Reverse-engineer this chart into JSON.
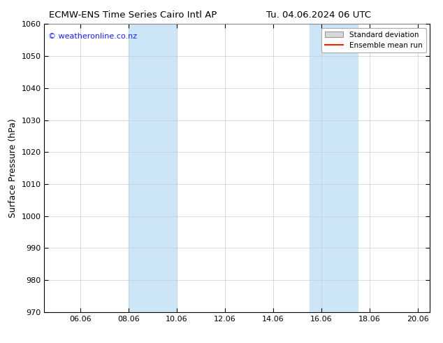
{
  "title_left": "ECMW-ENS Time Series Cairo Intl AP",
  "title_right": "Tu. 04.06.2024 06 UTC",
  "ylabel": "Surface Pressure (hPa)",
  "xlim": [
    4.5,
    20.5
  ],
  "ylim": [
    970,
    1060
  ],
  "yticks": [
    970,
    980,
    990,
    1000,
    1010,
    1020,
    1030,
    1040,
    1050,
    1060
  ],
  "xtick_labels": [
    "06.06",
    "08.06",
    "10.06",
    "12.06",
    "14.06",
    "16.06",
    "18.06",
    "20.06"
  ],
  "xtick_positions": [
    6,
    8,
    10,
    12,
    14,
    16,
    18,
    20
  ],
  "shaded_bands": [
    {
      "x_start": 8.0,
      "x_end": 10.0
    },
    {
      "x_start": 15.5,
      "x_end": 17.5
    }
  ],
  "shade_color": "#cde6f7",
  "shade_alpha": 1.0,
  "watermark_text": "© weatheronline.co.nz",
  "watermark_color": "#1a1aff",
  "watermark_fontsize": 8.0,
  "legend_std_dev_color": "#d8d8d8",
  "legend_mean_color": "#ff2200",
  "bg_color": "#ffffff",
  "plot_bg_color": "#ffffff",
  "grid_color": "#cccccc",
  "title_fontsize": 9.5,
  "tick_fontsize": 8,
  "ylabel_fontsize": 9
}
